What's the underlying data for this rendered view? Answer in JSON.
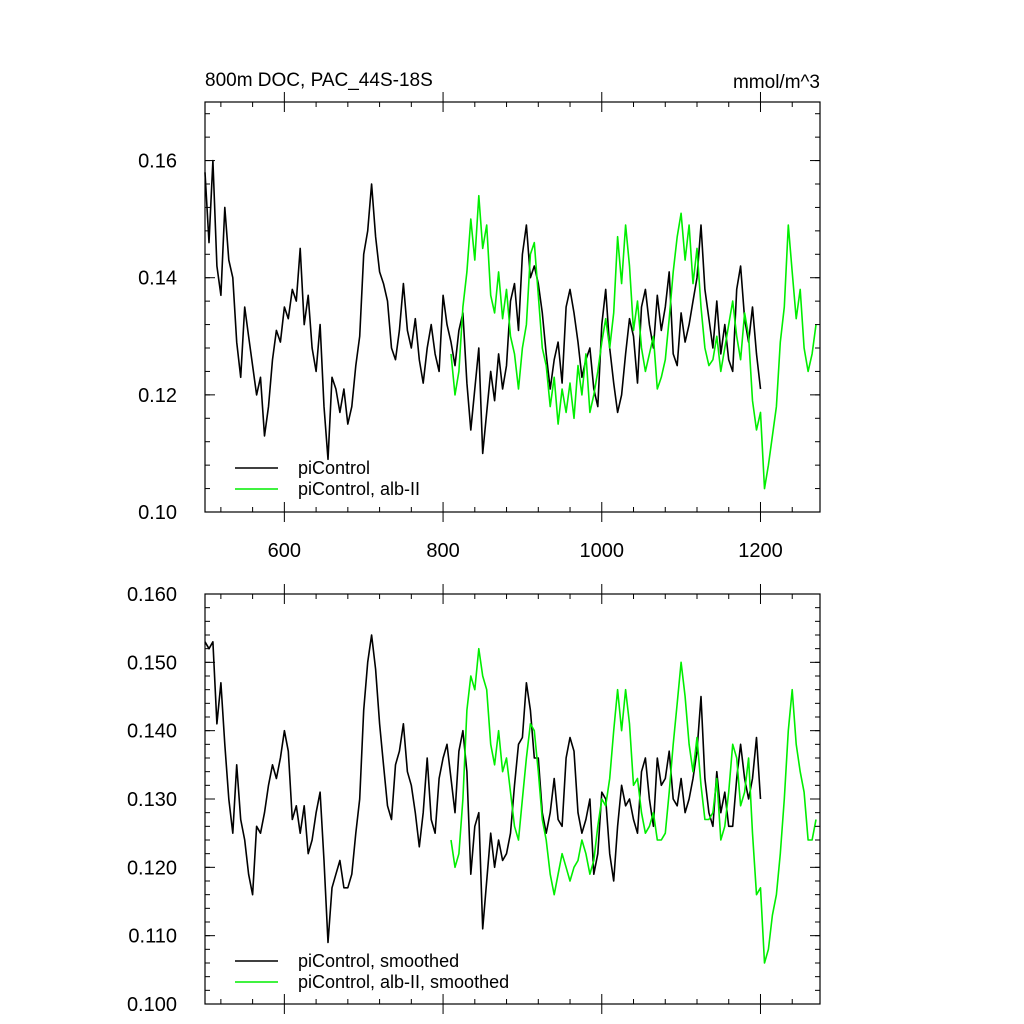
{
  "colors": {
    "piControl": "#000000",
    "alb_II": "#00ee00"
  },
  "chart_data": [
    {
      "type": "line",
      "title": "800m DOC, PAC_44S-18S",
      "units": "mmol/m^3",
      "xlim": [
        500,
        1275
      ],
      "ylim": [
        0.1,
        0.17
      ],
      "xticks": [
        600,
        800,
        1000,
        1200
      ],
      "xtick_labels": [
        "600",
        "800",
        "1000",
        "1200"
      ],
      "yticks": [
        0.1,
        0.12,
        0.14,
        0.16
      ],
      "ytick_labels": [
        "0.10",
        "0.12",
        "0.14",
        "0.16"
      ],
      "legend_position": "bottom-left",
      "series": [
        {
          "name": "piControl",
          "color": "#000000",
          "x": [
            500,
            505,
            510,
            515,
            520,
            525,
            530,
            535,
            540,
            545,
            550,
            555,
            560,
            565,
            570,
            575,
            580,
            585,
            590,
            595,
            600,
            605,
            610,
            615,
            620,
            625,
            630,
            635,
            640,
            645,
            650,
            655,
            660,
            665,
            670,
            675,
            680,
            685,
            690,
            695,
            700,
            705,
            710,
            715,
            720,
            725,
            730,
            735,
            740,
            745,
            750,
            755,
            760,
            765,
            770,
            775,
            780,
            785,
            790,
            795,
            800,
            805,
            810,
            815,
            820,
            825,
            830,
            835,
            840,
            845,
            850,
            855,
            860,
            865,
            870,
            875,
            880,
            885,
            890,
            895,
            900,
            905,
            910,
            915,
            920,
            925,
            930,
            935,
            940,
            945,
            950,
            955,
            960,
            965,
            970,
            975,
            980,
            985,
            990,
            995,
            1000,
            1005,
            1010,
            1015,
            1020,
            1025,
            1030,
            1035,
            1040,
            1045,
            1050,
            1055,
            1060,
            1065,
            1070,
            1075,
            1080,
            1085,
            1090,
            1095,
            1100,
            1105,
            1110,
            1115,
            1120,
            1125,
            1130,
            1135,
            1140,
            1145,
            1150,
            1155,
            1160,
            1165,
            1170,
            1175,
            1180,
            1185,
            1190,
            1195,
            1200
          ],
          "y": [
            0.158,
            0.146,
            0.16,
            0.142,
            0.137,
            0.152,
            0.143,
            0.14,
            0.129,
            0.123,
            0.135,
            0.13,
            0.125,
            0.12,
            0.123,
            0.113,
            0.118,
            0.126,
            0.131,
            0.129,
            0.135,
            0.133,
            0.138,
            0.136,
            0.145,
            0.132,
            0.137,
            0.128,
            0.124,
            0.132,
            0.118,
            0.109,
            0.123,
            0.121,
            0.117,
            0.121,
            0.115,
            0.118,
            0.125,
            0.13,
            0.144,
            0.148,
            0.156,
            0.147,
            0.141,
            0.139,
            0.136,
            0.128,
            0.126,
            0.131,
            0.139,
            0.131,
            0.128,
            0.133,
            0.126,
            0.122,
            0.128,
            0.132,
            0.127,
            0.124,
            0.137,
            0.132,
            0.129,
            0.125,
            0.131,
            0.134,
            0.122,
            0.114,
            0.121,
            0.128,
            0.11,
            0.117,
            0.124,
            0.119,
            0.127,
            0.121,
            0.125,
            0.136,
            0.139,
            0.131,
            0.144,
            0.149,
            0.14,
            0.142,
            0.139,
            0.134,
            0.127,
            0.121,
            0.126,
            0.129,
            0.122,
            0.135,
            0.138,
            0.134,
            0.129,
            0.123,
            0.126,
            0.128,
            0.121,
            0.118,
            0.132,
            0.138,
            0.128,
            0.122,
            0.117,
            0.12,
            0.127,
            0.133,
            0.13,
            0.122,
            0.135,
            0.138,
            0.132,
            0.128,
            0.137,
            0.131,
            0.135,
            0.141,
            0.127,
            0.125,
            0.134,
            0.129,
            0.132,
            0.136,
            0.14,
            0.149,
            0.138,
            0.133,
            0.128,
            0.136,
            0.127,
            0.132,
            0.126,
            0.124,
            0.138,
            0.142,
            0.133,
            0.129,
            0.135,
            0.127,
            0.121
          ]
        },
        {
          "name": "piControl, alb-II",
          "color": "#00ee00",
          "x": [
            810,
            815,
            820,
            825,
            830,
            835,
            840,
            845,
            850,
            855,
            860,
            865,
            870,
            875,
            880,
            885,
            890,
            895,
            900,
            905,
            910,
            915,
            920,
            925,
            930,
            935,
            940,
            945,
            950,
            955,
            960,
            965,
            970,
            975,
            980,
            985,
            990,
            995,
            1000,
            1005,
            1010,
            1015,
            1020,
            1025,
            1030,
            1035,
            1040,
            1045,
            1050,
            1055,
            1060,
            1065,
            1070,
            1075,
            1080,
            1085,
            1090,
            1095,
            1100,
            1105,
            1110,
            1115,
            1120,
            1125,
            1130,
            1135,
            1140,
            1145,
            1150,
            1155,
            1160,
            1165,
            1170,
            1175,
            1180,
            1185,
            1190,
            1195,
            1200,
            1205,
            1210,
            1215,
            1220,
            1225,
            1230,
            1235,
            1240,
            1245,
            1250,
            1255,
            1260,
            1265,
            1270
          ],
          "y": [
            0.127,
            0.12,
            0.124,
            0.135,
            0.141,
            0.15,
            0.143,
            0.154,
            0.145,
            0.149,
            0.137,
            0.134,
            0.141,
            0.133,
            0.138,
            0.13,
            0.127,
            0.121,
            0.128,
            0.132,
            0.144,
            0.146,
            0.137,
            0.128,
            0.125,
            0.118,
            0.123,
            0.115,
            0.121,
            0.117,
            0.122,
            0.116,
            0.125,
            0.12,
            0.127,
            0.117,
            0.12,
            0.124,
            0.129,
            0.133,
            0.128,
            0.134,
            0.147,
            0.139,
            0.149,
            0.142,
            0.131,
            0.136,
            0.128,
            0.124,
            0.127,
            0.13,
            0.121,
            0.123,
            0.126,
            0.133,
            0.141,
            0.147,
            0.151,
            0.143,
            0.149,
            0.139,
            0.145,
            0.135,
            0.128,
            0.125,
            0.126,
            0.13,
            0.124,
            0.128,
            0.132,
            0.136,
            0.13,
            0.126,
            0.134,
            0.13,
            0.119,
            0.114,
            0.117,
            0.104,
            0.108,
            0.113,
            0.118,
            0.129,
            0.135,
            0.149,
            0.141,
            0.133,
            0.138,
            0.128,
            0.124,
            0.127,
            0.132
          ]
        }
      ]
    },
    {
      "type": "line",
      "xlim": [
        500,
        1275
      ],
      "ylim": [
        0.1,
        0.16
      ],
      "xticks": [
        600,
        800,
        1000,
        1200
      ],
      "yticks": [
        0.1,
        0.11,
        0.12,
        0.13,
        0.14,
        0.15,
        0.16
      ],
      "ytick_labels": [
        "0.100",
        "0.110",
        "0.120",
        "0.130",
        "0.140",
        "0.150",
        "0.160"
      ],
      "legend_position": "bottom-left",
      "series": [
        {
          "name": "piControl, smoothed",
          "color": "#000000",
          "x": [
            500,
            505,
            510,
            515,
            520,
            525,
            530,
            535,
            540,
            545,
            550,
            555,
            560,
            565,
            570,
            575,
            580,
            585,
            590,
            595,
            600,
            605,
            610,
            615,
            620,
            625,
            630,
            635,
            640,
            645,
            650,
            655,
            660,
            665,
            670,
            675,
            680,
            685,
            690,
            695,
            700,
            705,
            710,
            715,
            720,
            725,
            730,
            735,
            740,
            745,
            750,
            755,
            760,
            765,
            770,
            775,
            780,
            785,
            790,
            795,
            800,
            805,
            810,
            815,
            820,
            825,
            830,
            835,
            840,
            845,
            850,
            855,
            860,
            865,
            870,
            875,
            880,
            885,
            890,
            895,
            900,
            905,
            910,
            915,
            920,
            925,
            930,
            935,
            940,
            945,
            950,
            955,
            960,
            965,
            970,
            975,
            980,
            985,
            990,
            995,
            1000,
            1005,
            1010,
            1015,
            1020,
            1025,
            1030,
            1035,
            1040,
            1045,
            1050,
            1055,
            1060,
            1065,
            1070,
            1075,
            1080,
            1085,
            1090,
            1095,
            1100,
            1105,
            1110,
            1115,
            1120,
            1125,
            1130,
            1135,
            1140,
            1145,
            1150,
            1155,
            1160,
            1165,
            1170,
            1175,
            1180,
            1185,
            1190,
            1195,
            1200
          ],
          "y": [
            0.153,
            0.152,
            0.153,
            0.141,
            0.147,
            0.138,
            0.13,
            0.125,
            0.135,
            0.127,
            0.124,
            0.119,
            0.116,
            0.126,
            0.125,
            0.128,
            0.132,
            0.135,
            0.133,
            0.136,
            0.14,
            0.137,
            0.127,
            0.129,
            0.125,
            0.129,
            0.122,
            0.124,
            0.128,
            0.131,
            0.121,
            0.109,
            0.117,
            0.119,
            0.121,
            0.117,
            0.117,
            0.119,
            0.125,
            0.13,
            0.143,
            0.15,
            0.154,
            0.149,
            0.141,
            0.135,
            0.129,
            0.127,
            0.135,
            0.137,
            0.141,
            0.134,
            0.132,
            0.128,
            0.123,
            0.128,
            0.136,
            0.127,
            0.125,
            0.133,
            0.136,
            0.138,
            0.133,
            0.128,
            0.137,
            0.14,
            0.134,
            0.119,
            0.126,
            0.128,
            0.111,
            0.118,
            0.125,
            0.12,
            0.124,
            0.121,
            0.122,
            0.125,
            0.132,
            0.138,
            0.139,
            0.147,
            0.143,
            0.136,
            0.136,
            0.128,
            0.125,
            0.128,
            0.133,
            0.127,
            0.126,
            0.136,
            0.139,
            0.137,
            0.128,
            0.125,
            0.127,
            0.13,
            0.119,
            0.122,
            0.131,
            0.13,
            0.122,
            0.118,
            0.126,
            0.132,
            0.129,
            0.13,
            0.127,
            0.125,
            0.134,
            0.136,
            0.13,
            0.126,
            0.136,
            0.132,
            0.133,
            0.137,
            0.13,
            0.129,
            0.133,
            0.128,
            0.13,
            0.133,
            0.137,
            0.145,
            0.133,
            0.128,
            0.126,
            0.134,
            0.128,
            0.131,
            0.126,
            0.126,
            0.133,
            0.138,
            0.133,
            0.13,
            0.133,
            0.139,
            0.13
          ]
        },
        {
          "name": "piControl, alb-II, smoothed",
          "color": "#00ee00",
          "x": [
            810,
            815,
            820,
            825,
            830,
            835,
            840,
            845,
            850,
            855,
            860,
            865,
            870,
            875,
            880,
            885,
            890,
            895,
            900,
            905,
            910,
            915,
            920,
            925,
            930,
            935,
            940,
            945,
            950,
            955,
            960,
            965,
            970,
            975,
            980,
            985,
            990,
            995,
            1000,
            1005,
            1010,
            1015,
            1020,
            1025,
            1030,
            1035,
            1040,
            1045,
            1050,
            1055,
            1060,
            1065,
            1070,
            1075,
            1080,
            1085,
            1090,
            1095,
            1100,
            1105,
            1110,
            1115,
            1120,
            1125,
            1130,
            1135,
            1140,
            1145,
            1150,
            1155,
            1160,
            1165,
            1170,
            1175,
            1180,
            1185,
            1190,
            1195,
            1200,
            1205,
            1210,
            1215,
            1220,
            1225,
            1230,
            1235,
            1240,
            1245,
            1250,
            1255,
            1260,
            1265,
            1270
          ],
          "y": [
            0.124,
            0.12,
            0.122,
            0.13,
            0.143,
            0.148,
            0.146,
            0.152,
            0.148,
            0.146,
            0.138,
            0.135,
            0.14,
            0.134,
            0.136,
            0.131,
            0.126,
            0.124,
            0.13,
            0.136,
            0.141,
            0.14,
            0.134,
            0.127,
            0.124,
            0.119,
            0.116,
            0.119,
            0.122,
            0.12,
            0.118,
            0.12,
            0.121,
            0.124,
            0.122,
            0.119,
            0.121,
            0.126,
            0.13,
            0.129,
            0.133,
            0.14,
            0.146,
            0.14,
            0.146,
            0.141,
            0.132,
            0.133,
            0.128,
            0.125,
            0.126,
            0.128,
            0.124,
            0.124,
            0.125,
            0.131,
            0.138,
            0.144,
            0.15,
            0.145,
            0.138,
            0.134,
            0.139,
            0.132,
            0.127,
            0.127,
            0.128,
            0.133,
            0.124,
            0.126,
            0.131,
            0.138,
            0.136,
            0.129,
            0.131,
            0.136,
            0.125,
            0.116,
            0.117,
            0.106,
            0.108,
            0.113,
            0.116,
            0.122,
            0.13,
            0.14,
            0.146,
            0.138,
            0.134,
            0.131,
            0.124,
            0.124,
            0.127
          ]
        }
      ]
    }
  ]
}
